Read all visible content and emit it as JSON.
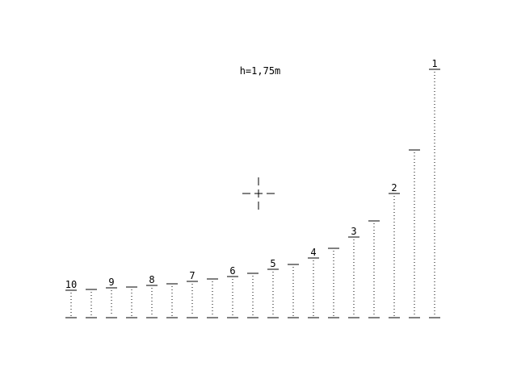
{
  "scope": {
    "height_label": "h=1,75m",
    "distance_labels": [
      "10",
      "9",
      "8",
      "7",
      "6",
      "5",
      "4",
      "3",
      "2",
      "1"
    ],
    "stadia_levels": [
      0.11,
      0.115,
      0.12,
      0.125,
      0.13,
      0.135,
      0.145,
      0.155,
      0.165,
      0.18,
      0.195,
      0.215,
      0.24,
      0.28,
      0.325,
      0.39,
      0.5,
      0.675,
      1.0
    ],
    "ink_color": "#000000",
    "background_color": "#ffffff"
  }
}
